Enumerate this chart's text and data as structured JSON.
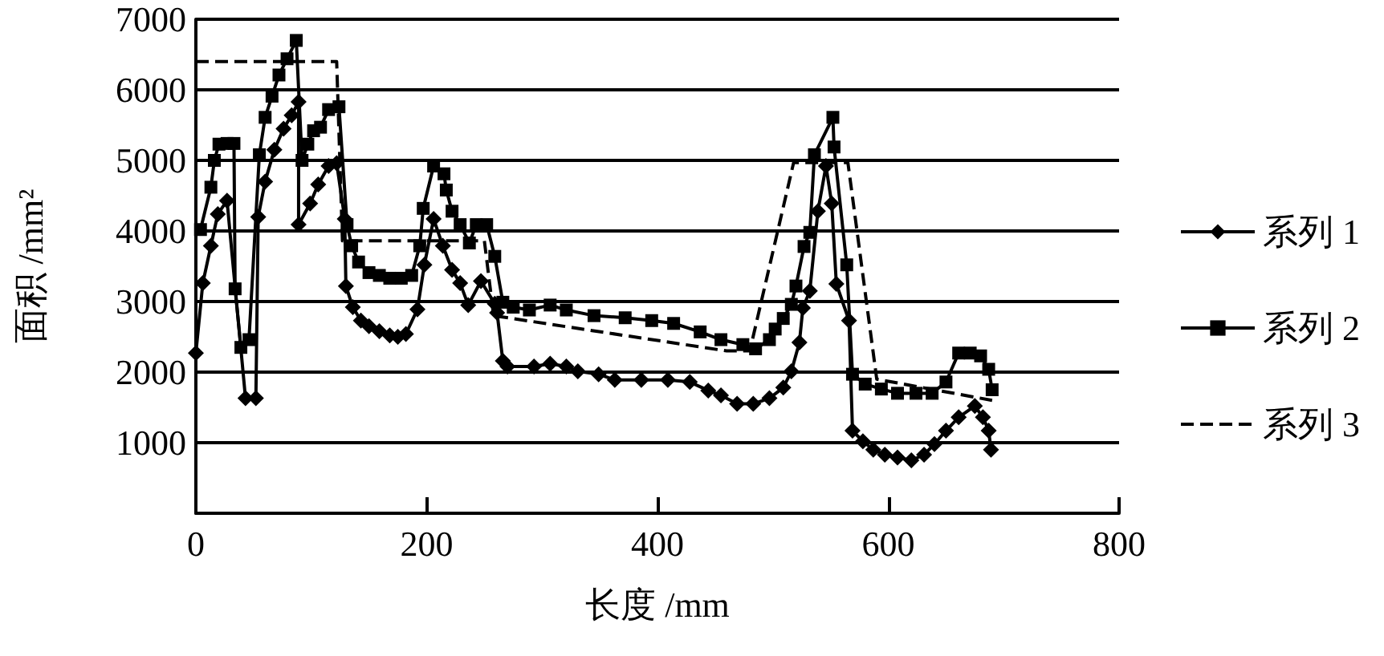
{
  "chart_data": {
    "type": "line",
    "xlabel": "长度 /mm",
    "ylabel": "面积 /mm²",
    "xlim": [
      0,
      800
    ],
    "xticks": [
      0,
      200,
      400,
      600,
      800
    ],
    "ylim": [
      0,
      7000
    ],
    "yticks": [
      1000,
      2000,
      3000,
      4000,
      5000,
      6000,
      7000
    ],
    "grid": "y",
    "legend": "right",
    "series": [
      {
        "name": "系列 1",
        "color": "#000000",
        "marker": "diamond",
        "line_style": "solid",
        "x": [
          0,
          6,
          13,
          19,
          27,
          43,
          52,
          54,
          60,
          68,
          76,
          83,
          89,
          89,
          99,
          106,
          115,
          122,
          129,
          130,
          136,
          143,
          150,
          159,
          168,
          175,
          182,
          192,
          198,
          206,
          214,
          222,
          229,
          236,
          247,
          259,
          261,
          266,
          270,
          293,
          307,
          321,
          331,
          349,
          363,
          386,
          409,
          428,
          444,
          455,
          469,
          483,
          497,
          509,
          516,
          523,
          526,
          532,
          539,
          546,
          551,
          555,
          566,
          569,
          578,
          587,
          597,
          608,
          620,
          631,
          640,
          650,
          661,
          675,
          682,
          687,
          689
        ],
        "values": [
          2270,
          3260,
          3790,
          4240,
          4430,
          1630,
          1630,
          4200,
          4700,
          5150,
          5450,
          5640,
          5830,
          4090,
          4390,
          4660,
          4920,
          4960,
          4170,
          3220,
          2920,
          2730,
          2650,
          2580,
          2520,
          2500,
          2540,
          2890,
          3520,
          4170,
          3790,
          3450,
          3260,
          2950,
          3290,
          2970,
          2840,
          2160,
          2080,
          2080,
          2120,
          2080,
          2010,
          1970,
          1890,
          1890,
          1890,
          1860,
          1740,
          1670,
          1550,
          1550,
          1630,
          1780,
          2010,
          2420,
          2910,
          3150,
          4280,
          4920,
          4390,
          3250,
          2730,
          1170,
          1020,
          900,
          830,
          790,
          750,
          830,
          980,
          1170,
          1360,
          1520,
          1360,
          1170,
          900
        ]
      },
      {
        "name": "系列 2",
        "color": "#000000",
        "marker": "square",
        "line_style": "solid",
        "x": [
          4,
          13,
          16,
          20,
          27,
          33,
          34,
          39,
          46,
          55,
          60,
          66,
          72,
          79,
          87,
          92,
          97,
          102,
          108,
          115,
          124,
          131,
          135,
          141,
          150,
          159,
          168,
          178,
          187,
          194,
          197,
          206,
          215,
          217,
          222,
          229,
          237,
          243,
          252,
          259,
          266,
          275,
          289,
          307,
          321,
          345,
          372,
          395,
          414,
          437,
          455,
          474,
          485,
          497,
          502,
          509,
          516,
          520,
          527,
          532,
          536,
          552,
          553,
          564,
          569,
          580,
          594,
          608,
          624,
          638,
          650,
          661,
          671,
          680,
          687,
          690
        ],
        "values": [
          4020,
          4620,
          5000,
          5230,
          5240,
          5240,
          3180,
          2350,
          2460,
          5080,
          5610,
          5910,
          6210,
          6440,
          6700,
          5000,
          5230,
          5420,
          5470,
          5720,
          5760,
          4090,
          3790,
          3560,
          3410,
          3370,
          3330,
          3330,
          3370,
          3790,
          4320,
          4920,
          4810,
          4580,
          4280,
          4090,
          3830,
          4090,
          4090,
          3640,
          2990,
          2920,
          2880,
          2950,
          2880,
          2800,
          2770,
          2730,
          2690,
          2570,
          2460,
          2390,
          2330,
          2460,
          2610,
          2760,
          2960,
          3220,
          3780,
          3980,
          5080,
          5610,
          5190,
          3520,
          1970,
          1830,
          1760,
          1700,
          1700,
          1700,
          1860,
          2270,
          2270,
          2230,
          2040,
          1750
        ]
      },
      {
        "name": "系列 3",
        "color": "#000000",
        "marker": "none",
        "line_style": "dashed",
        "x": [
          0,
          122,
          127,
          250,
          258,
          460,
          480,
          518,
          565,
          590,
          690
        ],
        "values": [
          6400,
          6400,
          3860,
          3860,
          2800,
          2300,
          2300,
          4970,
          4970,
          1900,
          1600
        ]
      }
    ]
  }
}
